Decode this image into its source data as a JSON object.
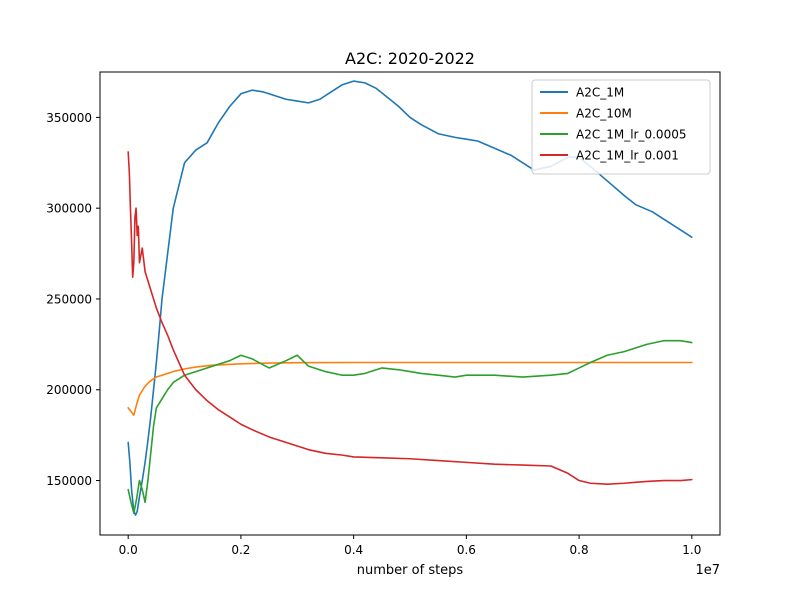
{
  "chart_data": {
    "type": "line",
    "title": "A2C: 2020-2022",
    "xlabel": "number of steps",
    "ylabel": "",
    "x_offset_label": "1e7",
    "xlim": [
      -0.05,
      1.05
    ],
    "ylim": [
      120000,
      375000
    ],
    "x_ticks": [
      0.0,
      0.2,
      0.4,
      0.6,
      0.8,
      1.0
    ],
    "x_tick_labels": [
      "0.0",
      "0.2",
      "0.4",
      "0.6",
      "0.8",
      "1.0"
    ],
    "y_ticks": [
      150000,
      200000,
      250000,
      300000,
      350000
    ],
    "y_tick_labels": [
      "150000",
      "200000",
      "250000",
      "300000",
      "350000"
    ],
    "grid": false,
    "legend_position": "top-right",
    "series": [
      {
        "name": "A2C_1M",
        "color": "#1f77b4",
        "x": [
          0.0,
          0.003,
          0.006,
          0.01,
          0.013,
          0.016,
          0.02,
          0.025,
          0.03,
          0.035,
          0.04,
          0.045,
          0.05,
          0.055,
          0.06,
          0.07,
          0.08,
          0.1,
          0.12,
          0.14,
          0.16,
          0.18,
          0.2,
          0.22,
          0.24,
          0.26,
          0.28,
          0.3,
          0.32,
          0.34,
          0.36,
          0.38,
          0.4,
          0.42,
          0.44,
          0.46,
          0.48,
          0.5,
          0.52,
          0.55,
          0.58,
          0.6,
          0.62,
          0.65,
          0.68,
          0.7,
          0.72,
          0.75,
          0.78,
          0.8,
          0.82,
          0.85,
          0.88,
          0.9,
          0.93,
          0.96,
          0.98,
          1.0
        ],
        "y": [
          171000,
          160000,
          145000,
          133000,
          131000,
          133000,
          141000,
          150000,
          160000,
          172000,
          185000,
          200000,
          215000,
          232000,
          250000,
          275000,
          300000,
          325000,
          332000,
          336000,
          347000,
          356000,
          363000,
          365000,
          364000,
          362000,
          360000,
          359000,
          358000,
          360000,
          364000,
          368000,
          370000,
          369000,
          366000,
          361000,
          356000,
          350000,
          346000,
          341000,
          339000,
          338000,
          337000,
          333000,
          329000,
          325000,
          321000,
          323000,
          328000,
          328000,
          323000,
          315000,
          307000,
          302000,
          298000,
          292000,
          288000,
          284000
        ]
      },
      {
        "name": "A2C_10M",
        "color": "#ff7f0e",
        "x": [
          0.0,
          0.005,
          0.01,
          0.015,
          0.02,
          0.03,
          0.04,
          0.05,
          0.06,
          0.08,
          0.1,
          0.12,
          0.15,
          0.2,
          0.25,
          0.3,
          0.4,
          0.5,
          0.6,
          0.7,
          0.8,
          0.9,
          1.0
        ],
        "y": [
          190000,
          188000,
          186000,
          192000,
          197000,
          202000,
          205000,
          207000,
          208000,
          210000,
          211500,
          212500,
          213500,
          214300,
          214700,
          214900,
          215000,
          215000,
          215000,
          215000,
          215000,
          215000,
          215000
        ]
      },
      {
        "name": "A2C_1M_lr_0.0005",
        "color": "#2ca02c",
        "x": [
          0.0,
          0.005,
          0.01,
          0.015,
          0.02,
          0.025,
          0.03,
          0.035,
          0.04,
          0.045,
          0.05,
          0.06,
          0.07,
          0.08,
          0.1,
          0.12,
          0.15,
          0.18,
          0.2,
          0.22,
          0.25,
          0.28,
          0.3,
          0.32,
          0.35,
          0.38,
          0.4,
          0.42,
          0.45,
          0.48,
          0.5,
          0.52,
          0.55,
          0.58,
          0.6,
          0.65,
          0.7,
          0.75,
          0.78,
          0.8,
          0.82,
          0.85,
          0.88,
          0.9,
          0.92,
          0.95,
          0.98,
          1.0
        ],
        "y": [
          145000,
          138000,
          132000,
          140000,
          150000,
          145000,
          138000,
          150000,
          165000,
          180000,
          190000,
          195000,
          200000,
          204000,
          208000,
          210000,
          213000,
          216000,
          219000,
          217000,
          212000,
          216000,
          219000,
          213000,
          210000,
          208000,
          208000,
          209000,
          212000,
          211000,
          210000,
          209000,
          208000,
          207000,
          208000,
          208000,
          207000,
          208000,
          209000,
          212000,
          215000,
          219000,
          221000,
          223000,
          225000,
          227000,
          227000,
          226000
        ]
      },
      {
        "name": "A2C_1M_lr_0.001",
        "color": "#d62728",
        "x": [
          0.0,
          0.002,
          0.004,
          0.006,
          0.008,
          0.01,
          0.012,
          0.014,
          0.016,
          0.018,
          0.02,
          0.025,
          0.03,
          0.035,
          0.04,
          0.05,
          0.06,
          0.07,
          0.08,
          0.09,
          0.1,
          0.12,
          0.14,
          0.16,
          0.18,
          0.2,
          0.22,
          0.25,
          0.28,
          0.3,
          0.32,
          0.35,
          0.38,
          0.4,
          0.45,
          0.5,
          0.55,
          0.6,
          0.65,
          0.7,
          0.75,
          0.78,
          0.8,
          0.82,
          0.85,
          0.88,
          0.9,
          0.92,
          0.95,
          0.98,
          1.0
        ],
        "y": [
          331000,
          320000,
          300000,
          282000,
          262000,
          270000,
          295000,
          300000,
          285000,
          290000,
          270000,
          278000,
          265000,
          260000,
          255000,
          245000,
          237000,
          230000,
          222000,
          215000,
          208000,
          200000,
          194000,
          189000,
          185000,
          181000,
          178000,
          174000,
          171000,
          169000,
          167000,
          165000,
          164000,
          163000,
          162500,
          162000,
          161000,
          160000,
          159000,
          158500,
          158000,
          154000,
          150000,
          148500,
          148000,
          148500,
          149000,
          149500,
          150000,
          150000,
          150500
        ]
      }
    ]
  }
}
